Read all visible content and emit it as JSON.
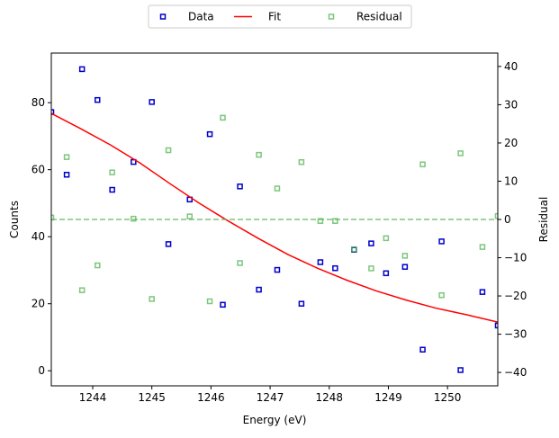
{
  "chart_data": {
    "type": "scatter",
    "xlabel": "Energy (eV)",
    "ylabel": "Counts",
    "y2label": "Residual",
    "xlim": [
      1243.3,
      1250.85
    ],
    "ylim": [
      -4.5,
      94.8
    ],
    "y2lim": [
      -43.5,
      43.5
    ],
    "xticks": [
      "1244",
      "1245",
      "1246",
      "1247",
      "1248",
      "1249",
      "1250"
    ],
    "yticks": [
      "0",
      "20",
      "40",
      "60",
      "80"
    ],
    "y2ticks": [
      "−40",
      "−30",
      "−20",
      "−10",
      "0",
      "10",
      "20",
      "30",
      "40"
    ],
    "legend_position": "top-center, outside plot",
    "grid": false,
    "series": [
      {
        "name": "Data",
        "kind": "scatter",
        "axis": "left",
        "marker": "hollow-square",
        "color": "#0000cc",
        "x": [
          1243.3,
          1243.56,
          1243.82,
          1244.08,
          1244.33,
          1244.69,
          1245.0,
          1245.28,
          1245.64,
          1245.98,
          1246.2,
          1246.49,
          1246.81,
          1247.12,
          1247.53,
          1247.85,
          1248.1,
          1248.42,
          1248.71,
          1248.96,
          1249.28,
          1249.58,
          1249.9,
          1250.22,
          1250.59,
          1250.85
        ],
        "y": [
          77.2,
          58.5,
          90.0,
          80.8,
          54.0,
          62.3,
          80.2,
          37.8,
          51.1,
          70.6,
          19.7,
          55.0,
          24.2,
          30.1,
          20.0,
          32.4,
          30.6,
          36.1,
          38.0,
          29.1,
          31.0,
          6.3,
          38.6,
          0.2,
          23.5,
          13.5
        ]
      },
      {
        "name": "Fit",
        "kind": "line",
        "axis": "left",
        "color": "#ff0000",
        "x": [
          1243.3,
          1243.8,
          1244.3,
          1244.8,
          1245.3,
          1245.8,
          1246.3,
          1246.8,
          1247.3,
          1247.8,
          1248.3,
          1248.8,
          1249.3,
          1249.8,
          1250.3,
          1250.85
        ],
        "y": [
          76.8,
          72.2,
          67.4,
          62.0,
          55.9,
          50.0,
          44.6,
          39.5,
          34.7,
          30.6,
          27.0,
          23.8,
          21.1,
          18.7,
          16.8,
          14.5
        ]
      },
      {
        "name": "Residual",
        "kind": "scatter",
        "axis": "right",
        "marker": "hollow-square",
        "color": "#5cb85c",
        "x": [
          1243.3,
          1243.56,
          1243.82,
          1244.08,
          1244.33,
          1244.69,
          1245.0,
          1245.28,
          1245.64,
          1245.98,
          1246.2,
          1246.49,
          1246.81,
          1247.12,
          1247.53,
          1247.85,
          1248.1,
          1248.42,
          1248.71,
          1248.96,
          1249.28,
          1249.58,
          1249.9,
          1250.22,
          1250.59,
          1250.85
        ],
        "y": [
          0.5,
          16.3,
          -18.5,
          -12.0,
          12.3,
          0.2,
          -20.8,
          18.1,
          0.8,
          -21.4,
          26.6,
          -11.4,
          16.9,
          8.1,
          15.0,
          -0.4,
          -0.4,
          -7.8,
          -12.8,
          -4.9,
          -9.5,
          14.4,
          -19.8,
          17.3,
          -7.2,
          0.9
        ]
      },
      {
        "name": "",
        "kind": "hline",
        "axis": "right",
        "color": "#5cb85c",
        "y": 0
      }
    ]
  }
}
